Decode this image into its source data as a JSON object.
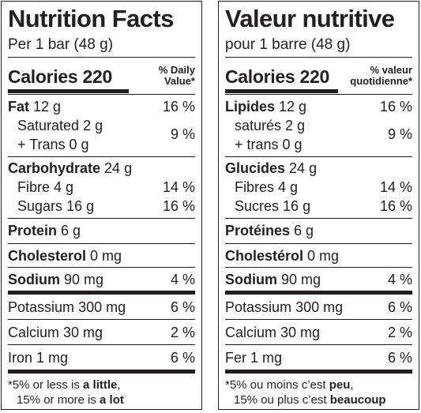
{
  "en": {
    "title": "Nutrition Facts",
    "serving": "Per 1 bar (48 g)",
    "calories_label": "Calories",
    "calories_value": "220",
    "dv_header": [
      "% Daily",
      "Value*"
    ],
    "fat": {
      "label": "Fat",
      "amount": "12 g",
      "dv": "16 %"
    },
    "saturated": {
      "label": "Saturated",
      "amount": "2 g"
    },
    "trans": {
      "label": "+ Trans",
      "amount": "0 g"
    },
    "sat_trans_dv": "9 %",
    "carbohydrate": {
      "label": "Carbohydrate",
      "amount": "24 g"
    },
    "fibre": {
      "label": "Fibre",
      "amount": "4 g",
      "dv": "14 %"
    },
    "sugars": {
      "label": "Sugars",
      "amount": "16 g",
      "dv": "16 %"
    },
    "protein": {
      "label": "Protein",
      "amount": "6 g"
    },
    "cholesterol": {
      "label": "Cholesterol",
      "amount": "0 mg"
    },
    "sodium": {
      "label": "Sodium",
      "amount": "90 mg",
      "dv": "4 %"
    },
    "potassium": {
      "label": "Potassium",
      "amount": "300 mg",
      "dv": "6 %"
    },
    "calcium": {
      "label": "Calcium",
      "amount": "30 mg",
      "dv": "2 %"
    },
    "iron": {
      "label": "Iron",
      "amount": "1 mg",
      "dv": "6 %"
    },
    "footnote": {
      "line1_pre": "*5% or less is ",
      "line1_bold": "a little",
      "line1_post": ",",
      "line2_pre": "15% or more is ",
      "line2_bold": "a lot"
    }
  },
  "fr": {
    "title": "Valeur nutritive",
    "serving": "pour 1 barre (48 g)",
    "calories_label": "Calories",
    "calories_value": "220",
    "dv_header": [
      "% valeur",
      "quotidienne*"
    ],
    "fat": {
      "label": "Lipides",
      "amount": "12 g",
      "dv": "16 %"
    },
    "saturated": {
      "label": "saturés",
      "amount": "2 g"
    },
    "trans": {
      "label": "+ trans",
      "amount": "0 g"
    },
    "sat_trans_dv": "9 %",
    "carbohydrate": {
      "label": "Glucides",
      "amount": "24 g"
    },
    "fibre": {
      "label": "Fibres",
      "amount": "4 g",
      "dv": "14 %"
    },
    "sugars": {
      "label": "Sucres",
      "amount": "16 g",
      "dv": "16 %"
    },
    "protein": {
      "label": "Protéines",
      "amount": "6 g"
    },
    "cholesterol": {
      "label": "Cholestérol",
      "amount": "0 mg"
    },
    "sodium": {
      "label": "Sodium",
      "amount": "90 mg",
      "dv": "4 %"
    },
    "potassium": {
      "label": "Potassium",
      "amount": "300 mg",
      "dv": "6 %"
    },
    "calcium": {
      "label": "Calcium",
      "amount": "30 mg",
      "dv": "2 %"
    },
    "iron": {
      "label": "Fer",
      "amount": "1 mg",
      "dv": "6 %"
    },
    "footnote": {
      "line1_pre": "*5% ou moins c’est ",
      "line1_bold": "peu",
      "line1_post": ",",
      "line2_pre": "15% ou plus c’est ",
      "line2_bold": "beaucoup"
    }
  }
}
